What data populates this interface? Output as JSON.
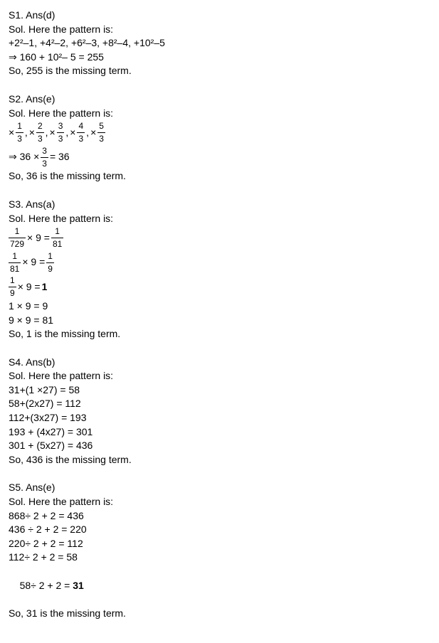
{
  "s1": {
    "heading": "S1. Ans(d)",
    "intro": "Sol. Here the pattern is:",
    "pattern": "+2²–1, +4²–2, +6²–3, +8²–4, +10²–5",
    "calc": "⇒ 160 + 10²– 5 = 255",
    "result": "So, 255 is the missing term."
  },
  "s2": {
    "heading": "S2. Ans(e)",
    "intro": "Sol. Here the pattern is:",
    "terms": [
      {
        "num": "1",
        "den": "3"
      },
      {
        "num": "2",
        "den": "3"
      },
      {
        "num": "3",
        "den": "3"
      },
      {
        "num": "4",
        "den": "3"
      },
      {
        "num": "5",
        "den": "3"
      }
    ],
    "calc_prefix": "⇒ 36 × ",
    "calc_frac": {
      "num": "3",
      "den": "3"
    },
    "calc_suffix": " = 36",
    "result": "So, 36 is the missing term."
  },
  "s3": {
    "heading": "S3. Ans(a)",
    "intro": "Sol. Here the pattern is:",
    "l1": {
      "a_num": "1",
      "a_den": "729",
      "mid": " × 9 = ",
      "b_num": "1",
      "b_den": "81"
    },
    "l2": {
      "a_num": "1",
      "a_den": "81",
      "mid": " × 9 = ",
      "b_num": "1",
      "b_den": "9"
    },
    "l3": {
      "a_num": "1",
      "a_den": "9",
      "mid": " × 9 = ",
      "res": "1"
    },
    "l4": "1 × 9 = 9",
    "l5": "9 × 9 = 81",
    "result": "So, 1 is the missing term."
  },
  "s4": {
    "heading": "S4. Ans(b)",
    "intro": "Sol. Here the pattern is:",
    "lines": [
      "31+(1 ×27) = 58",
      "58+(2x27) = 112",
      "112+(3x27) = 193",
      "193 + (4x27) = 301",
      "301 + (5x27) = 436"
    ],
    "result": "So, 436 is the missing term."
  },
  "s5": {
    "heading": "S5. Ans(e)",
    "intro": "Sol. Here the pattern is:",
    "lines": [
      "868÷ 2 + 2 = 436",
      "436 ÷ 2 + 2 = 220",
      "220÷ 2 + 2 = 112",
      "112÷ 2 + 2 = 58"
    ],
    "last_prefix": "58÷ 2 + 2 = ",
    "last_bold": "31",
    "result": "So, 31 is the missing term."
  }
}
